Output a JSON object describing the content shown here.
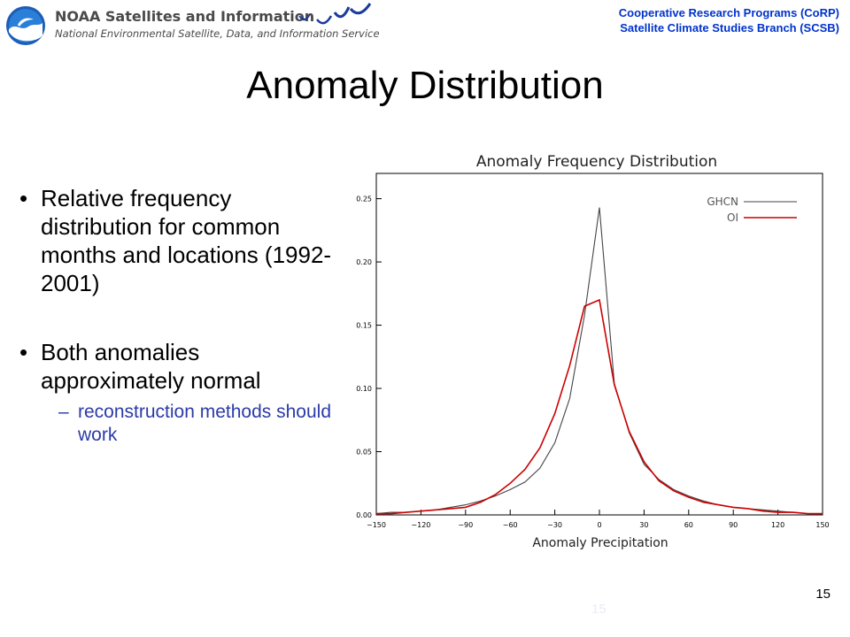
{
  "header": {
    "org_name": "NOAA Satellites and Information",
    "org_subtitle": "National Environmental Satellite, Data, and Information Service",
    "program_line1": "Cooperative Research Programs (CoRP)",
    "program_line2": "Satellite Climate Studies Branch (SCSB)"
  },
  "slide": {
    "title": "Anomaly Distribution",
    "bullets": [
      "Relative frequency distribution for common months and locations (1992-2001)",
      "Both anomalies approximately normal"
    ],
    "sub_bullet": "reconstruction methods should work",
    "bullet_marker": "•",
    "sub_marker": "–",
    "page_number": "15",
    "ghost_page_number": "15"
  },
  "chart_data": {
    "type": "line",
    "title": "Anomaly Frequency Distribution",
    "xlabel": "Anomaly Precipitation",
    "ylabel": "",
    "xlim": [
      -150,
      150
    ],
    "ylim": [
      0,
      0.27
    ],
    "xticks": [
      -150,
      -120,
      -90,
      -60,
      -30,
      0,
      30,
      60,
      90,
      120,
      150
    ],
    "xtick_labels": [
      "−150",
      "−120",
      "−90",
      "−60",
      "−30",
      "0",
      "30",
      "60",
      "90",
      "120",
      "150"
    ],
    "yticks": [
      0,
      0.05,
      0.1,
      0.15,
      0.2,
      0.25
    ],
    "ytick_labels": [
      "0.00",
      "0.05",
      "0.10",
      "0.15",
      "0.20",
      "0.25"
    ],
    "legend_position": "top-right",
    "grid": false,
    "series": [
      {
        "name": "GHCN",
        "color": "#444444",
        "x": [
          -150,
          -140,
          -130,
          -120,
          -110,
          -100,
          -90,
          -80,
          -70,
          -60,
          -50,
          -40,
          -30,
          -20,
          -10,
          0,
          10,
          20,
          30,
          40,
          50,
          60,
          70,
          80,
          90,
          100,
          110,
          120,
          130,
          140,
          150
        ],
        "y": [
          0.001,
          0.002,
          0.002,
          0.003,
          0.004,
          0.006,
          0.008,
          0.011,
          0.015,
          0.02,
          0.026,
          0.037,
          0.057,
          0.092,
          0.158,
          0.243,
          0.104,
          0.065,
          0.04,
          0.028,
          0.02,
          0.015,
          0.011,
          0.008,
          0.006,
          0.005,
          0.004,
          0.003,
          0.002,
          0.001,
          0.001
        ]
      },
      {
        "name": "OI",
        "color": "#cc0000",
        "x": [
          -150,
          -140,
          -130,
          -120,
          -110,
          -100,
          -90,
          -80,
          -70,
          -60,
          -50,
          -40,
          -30,
          -20,
          -10,
          0,
          10,
          20,
          30,
          40,
          50,
          60,
          70,
          80,
          90,
          100,
          110,
          120,
          130,
          140,
          150
        ],
        "y": [
          0.001,
          0.001,
          0.002,
          0.003,
          0.004,
          0.005,
          0.006,
          0.01,
          0.016,
          0.025,
          0.036,
          0.053,
          0.08,
          0.118,
          0.165,
          0.17,
          0.103,
          0.066,
          0.042,
          0.027,
          0.019,
          0.014,
          0.01,
          0.008,
          0.006,
          0.005,
          0.003,
          0.002,
          0.002,
          0.001,
          0.001
        ]
      }
    ]
  }
}
